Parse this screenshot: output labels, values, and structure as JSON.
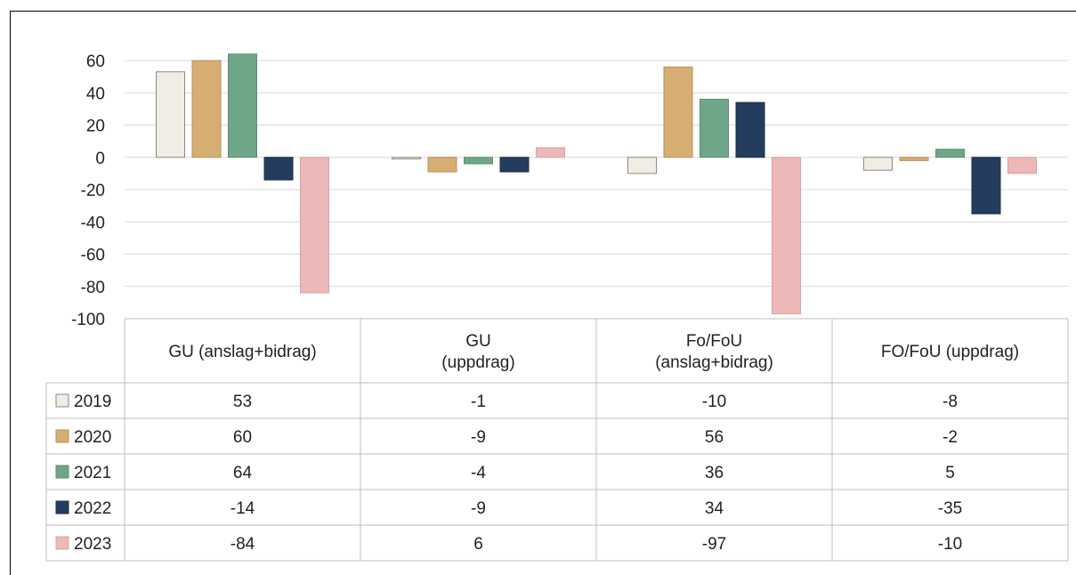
{
  "chart_data": {
    "type": "bar",
    "categories": [
      [
        "GU (anslag+bidrag)"
      ],
      [
        "GU",
        "(uppdrag)"
      ],
      [
        "Fo/FoU",
        "(anslag+bidrag)"
      ],
      [
        "FO/FoU (uppdrag)"
      ]
    ],
    "series": [
      {
        "name": "2019",
        "values": [
          53,
          -1,
          -10,
          -8
        ],
        "color": "#f0eee4",
        "stroke": "#8c8a80"
      },
      {
        "name": "2020",
        "values": [
          60,
          -9,
          56,
          -2
        ],
        "color": "#d6ad72",
        "stroke": "#b8915a"
      },
      {
        "name": "2021",
        "values": [
          64,
          -4,
          36,
          5
        ],
        "color": "#6fa688",
        "stroke": "#5a8e71"
      },
      {
        "name": "2022",
        "values": [
          -14,
          -9,
          34,
          -35
        ],
        "color": "#243d5e",
        "stroke": "#1b2f49"
      },
      {
        "name": "2023",
        "values": [
          -84,
          6,
          -97,
          -10
        ],
        "color": "#ecb8b8",
        "stroke": "#d9a3a3"
      }
    ],
    "y_ticks": [
      "60",
      "40",
      "20",
      "0",
      "-20",
      "-40",
      "-60",
      "-80",
      "-100"
    ],
    "ylim": [
      -100,
      60
    ],
    "grid": true,
    "legend": "data-table"
  }
}
